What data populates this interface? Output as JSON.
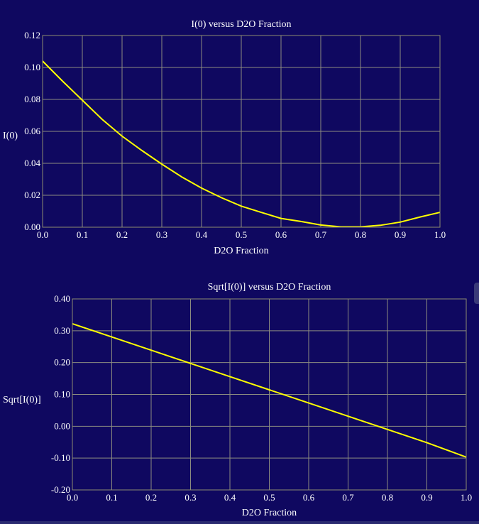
{
  "colors": {
    "background": "#0f0860",
    "series": "#ffff00",
    "grid": "#8c8c80",
    "text": "#ffffff"
  },
  "chart_data": [
    {
      "type": "line",
      "title": "I(0) versus D2O Fraction",
      "xlabel": "D2O Fraction",
      "ylabel": "I(0)",
      "xlim": [
        0.0,
        1.0
      ],
      "ylim": [
        0.0,
        0.12
      ],
      "grid": true,
      "xticks": [
        "0.0",
        "0.1",
        "0.2",
        "0.3",
        "0.4",
        "0.5",
        "0.6",
        "0.7",
        "0.8",
        "0.9",
        "1.0"
      ],
      "yticks": [
        "0.00",
        "0.02",
        "0.04",
        "0.06",
        "0.08",
        "0.10",
        "0.12"
      ],
      "series": [
        {
          "x": [
            0.0,
            0.05,
            0.1,
            0.15,
            0.2,
            0.25,
            0.3,
            0.35,
            0.4,
            0.45,
            0.5,
            0.55,
            0.6,
            0.65,
            0.7,
            0.75,
            0.8,
            0.85,
            0.9,
            0.95,
            1.0
          ],
          "y": [
            0.104,
            0.0915,
            0.0795,
            0.0675,
            0.057,
            0.048,
            0.0395,
            0.0315,
            0.0245,
            0.0185,
            0.0132,
            0.0093,
            0.0055,
            0.0036,
            0.0014,
            0.0002,
            0.0002,
            0.0012,
            0.0032,
            0.0064,
            0.0093
          ]
        }
      ]
    },
    {
      "type": "line",
      "title": "Sqrt[I(0)] versus D2O Fraction",
      "xlabel": "D2O Fraction",
      "ylabel": "Sqrt[I(0)]",
      "xlim": [
        0.0,
        1.0
      ],
      "ylim": [
        -0.2,
        0.4
      ],
      "grid": true,
      "xticks": [
        "0.0",
        "0.1",
        "0.2",
        "0.3",
        "0.4",
        "0.5",
        "0.6",
        "0.7",
        "0.8",
        "0.9",
        "1.0"
      ],
      "yticks": [
        "-0.20",
        "-0.10",
        "0.00",
        "0.10",
        "0.20",
        "0.30",
        "0.40"
      ],
      "series": [
        {
          "x": [
            0.0,
            0.1,
            0.2,
            0.3,
            0.4,
            0.5,
            0.6,
            0.7,
            0.8,
            0.9,
            1.0
          ],
          "y": [
            0.322,
            0.2805,
            0.239,
            0.1975,
            0.156,
            0.1145,
            0.073,
            0.0315,
            -0.01,
            -0.0515,
            -0.097
          ]
        }
      ]
    }
  ]
}
